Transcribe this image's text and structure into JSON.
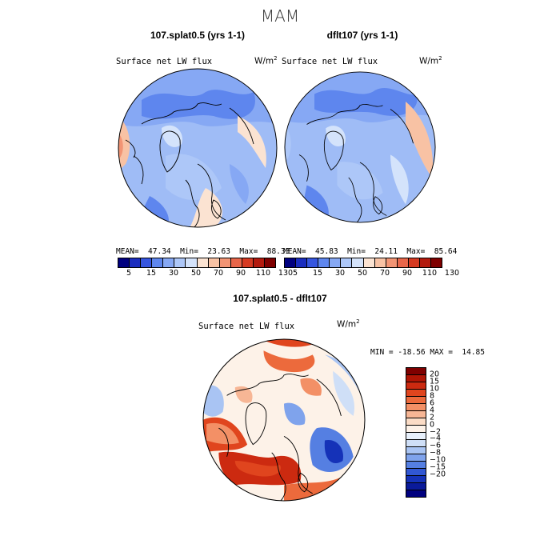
{
  "figure": {
    "title": "MAM"
  },
  "panels": {
    "top_left": {
      "case_title": "107.splat0.5 (yrs 1-1)",
      "field": "Surface net LW flux",
      "units": "W/m",
      "units_exp": "2",
      "stats": "MEAN=  47.34  Min=  23.63  Max=  88.33"
    },
    "top_right": {
      "case_title": "dflt107 (yrs 1-1)",
      "field": "Surface net LW flux",
      "units": "W/m",
      "units_exp": "2",
      "stats": "MEAN=  45.83  Min=  24.11  Max=  85.64"
    },
    "diff": {
      "case_title": "107.splat0.5 - dflt107",
      "field": "Surface net LW flux",
      "units": "W/m",
      "units_exp": "2",
      "stats": "MIN = -18.56 MAX =  14.85"
    }
  },
  "colorbar_abs": {
    "colors": [
      "#00007f",
      "#1a2dbf",
      "#3656e0",
      "#5e86ee",
      "#86a8f4",
      "#adc7f8",
      "#d4e3fb",
      "#fbe3d2",
      "#f8c2a4",
      "#f29474",
      "#e8664a",
      "#d63a22",
      "#b31a0e",
      "#7f0000"
    ],
    "tick_labels": [
      "5",
      "15",
      "30",
      "50",
      "70",
      "90",
      "110",
      "130"
    ]
  },
  "colorbar_diff": {
    "colors": [
      "#7f0000",
      "#b01505",
      "#cc2a10",
      "#e0451e",
      "#ec6a3c",
      "#f39066",
      "#f7b695",
      "#fbdcc6",
      "#fdf2e8",
      "#e8f0fb",
      "#cfdff7",
      "#a9c4f3",
      "#7fa3ec",
      "#557fe2",
      "#3157d3",
      "#1532b8",
      "#0a1a9a",
      "#00007f"
    ],
    "tick_labels": [
      "20",
      "15",
      "10",
      "8",
      "6",
      "4",
      "2",
      "0",
      "−2",
      "−4",
      "−6",
      "−8",
      "−10",
      "−15",
      "−20"
    ]
  }
}
